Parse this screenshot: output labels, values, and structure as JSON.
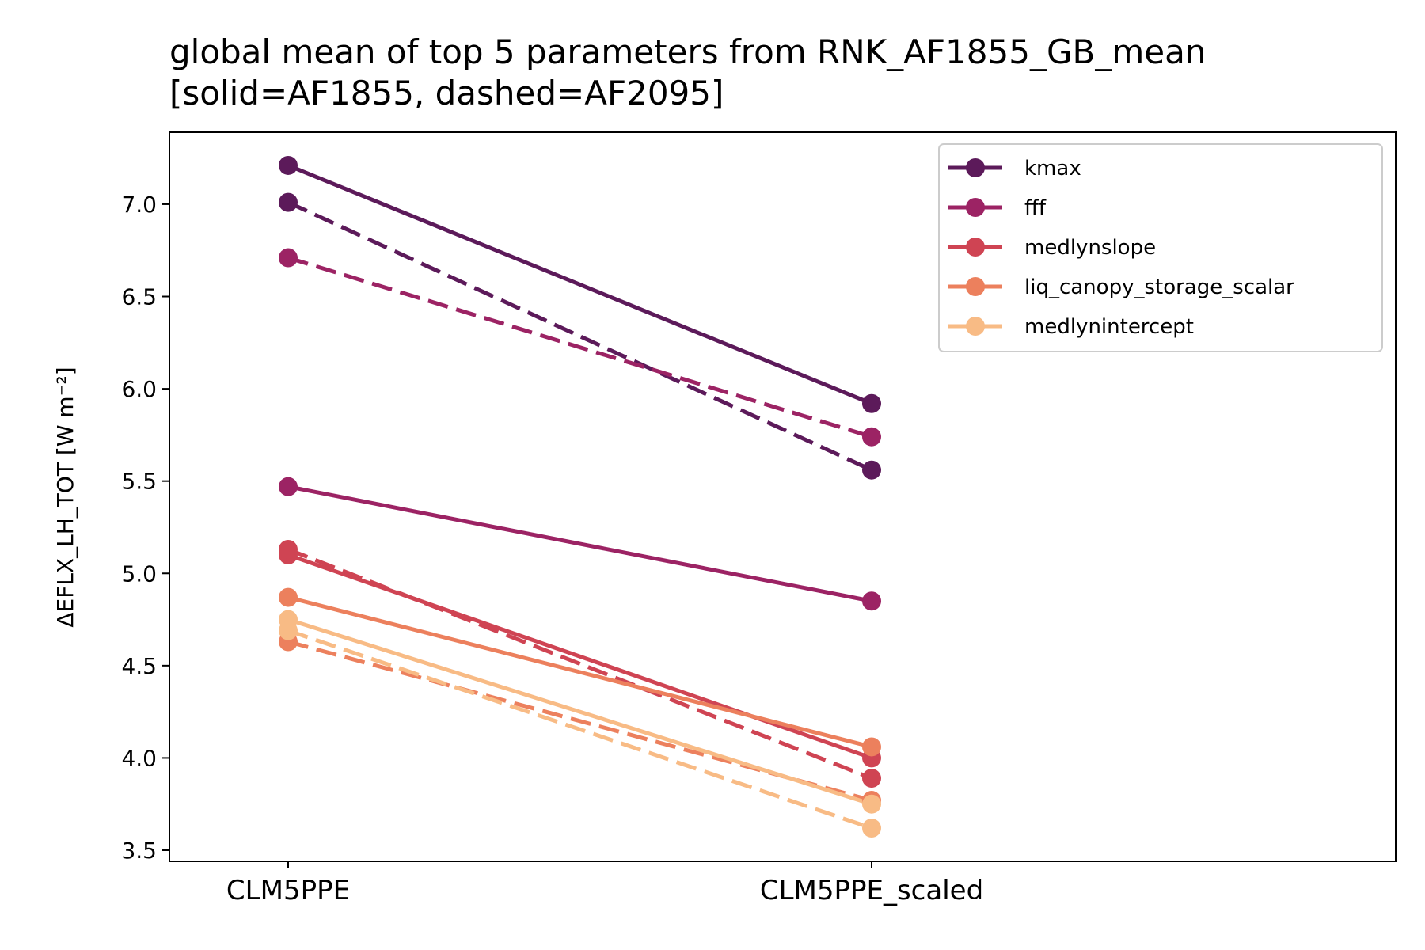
{
  "chart_data": {
    "type": "line",
    "title": "global mean of top 5 parameters from RNK_AF1855_GB_mean",
    "subtitle": "[solid=AF1855, dashed=AF2095]",
    "xlabel": "",
    "ylabel": "ΔEFLX_LH_TOT [W m⁻²]",
    "categories": [
      "CLM5PPE",
      "CLM5PPE_scaled"
    ],
    "ylim": [
      3.44,
      7.39
    ],
    "yticks": [
      "3.5",
      "4.0",
      "4.5",
      "5.0",
      "5.5",
      "6.0",
      "6.5",
      "7.0"
    ],
    "legend_position": "top-right",
    "series": [
      {
        "name": "kmax",
        "color": "#5c1a5a",
        "solid": [
          7.21,
          5.92
        ],
        "dashed": [
          7.01,
          5.56
        ]
      },
      {
        "name": "fff",
        "color": "#9c2364",
        "solid": [
          5.47,
          4.85
        ],
        "dashed": [
          6.71,
          5.74
        ]
      },
      {
        "name": "medlynslope",
        "color": "#cf4453",
        "solid": [
          5.1,
          4.0
        ],
        "dashed": [
          5.13,
          3.89
        ]
      },
      {
        "name": "liq_canopy_storage_scalar",
        "color": "#ec805d",
        "solid": [
          4.87,
          4.06
        ],
        "dashed": [
          4.63,
          3.77
        ]
      },
      {
        "name": "medlynintercept",
        "color": "#f8bb85",
        "solid": [
          4.75,
          3.75
        ],
        "dashed": [
          4.69,
          3.62
        ]
      }
    ]
  }
}
